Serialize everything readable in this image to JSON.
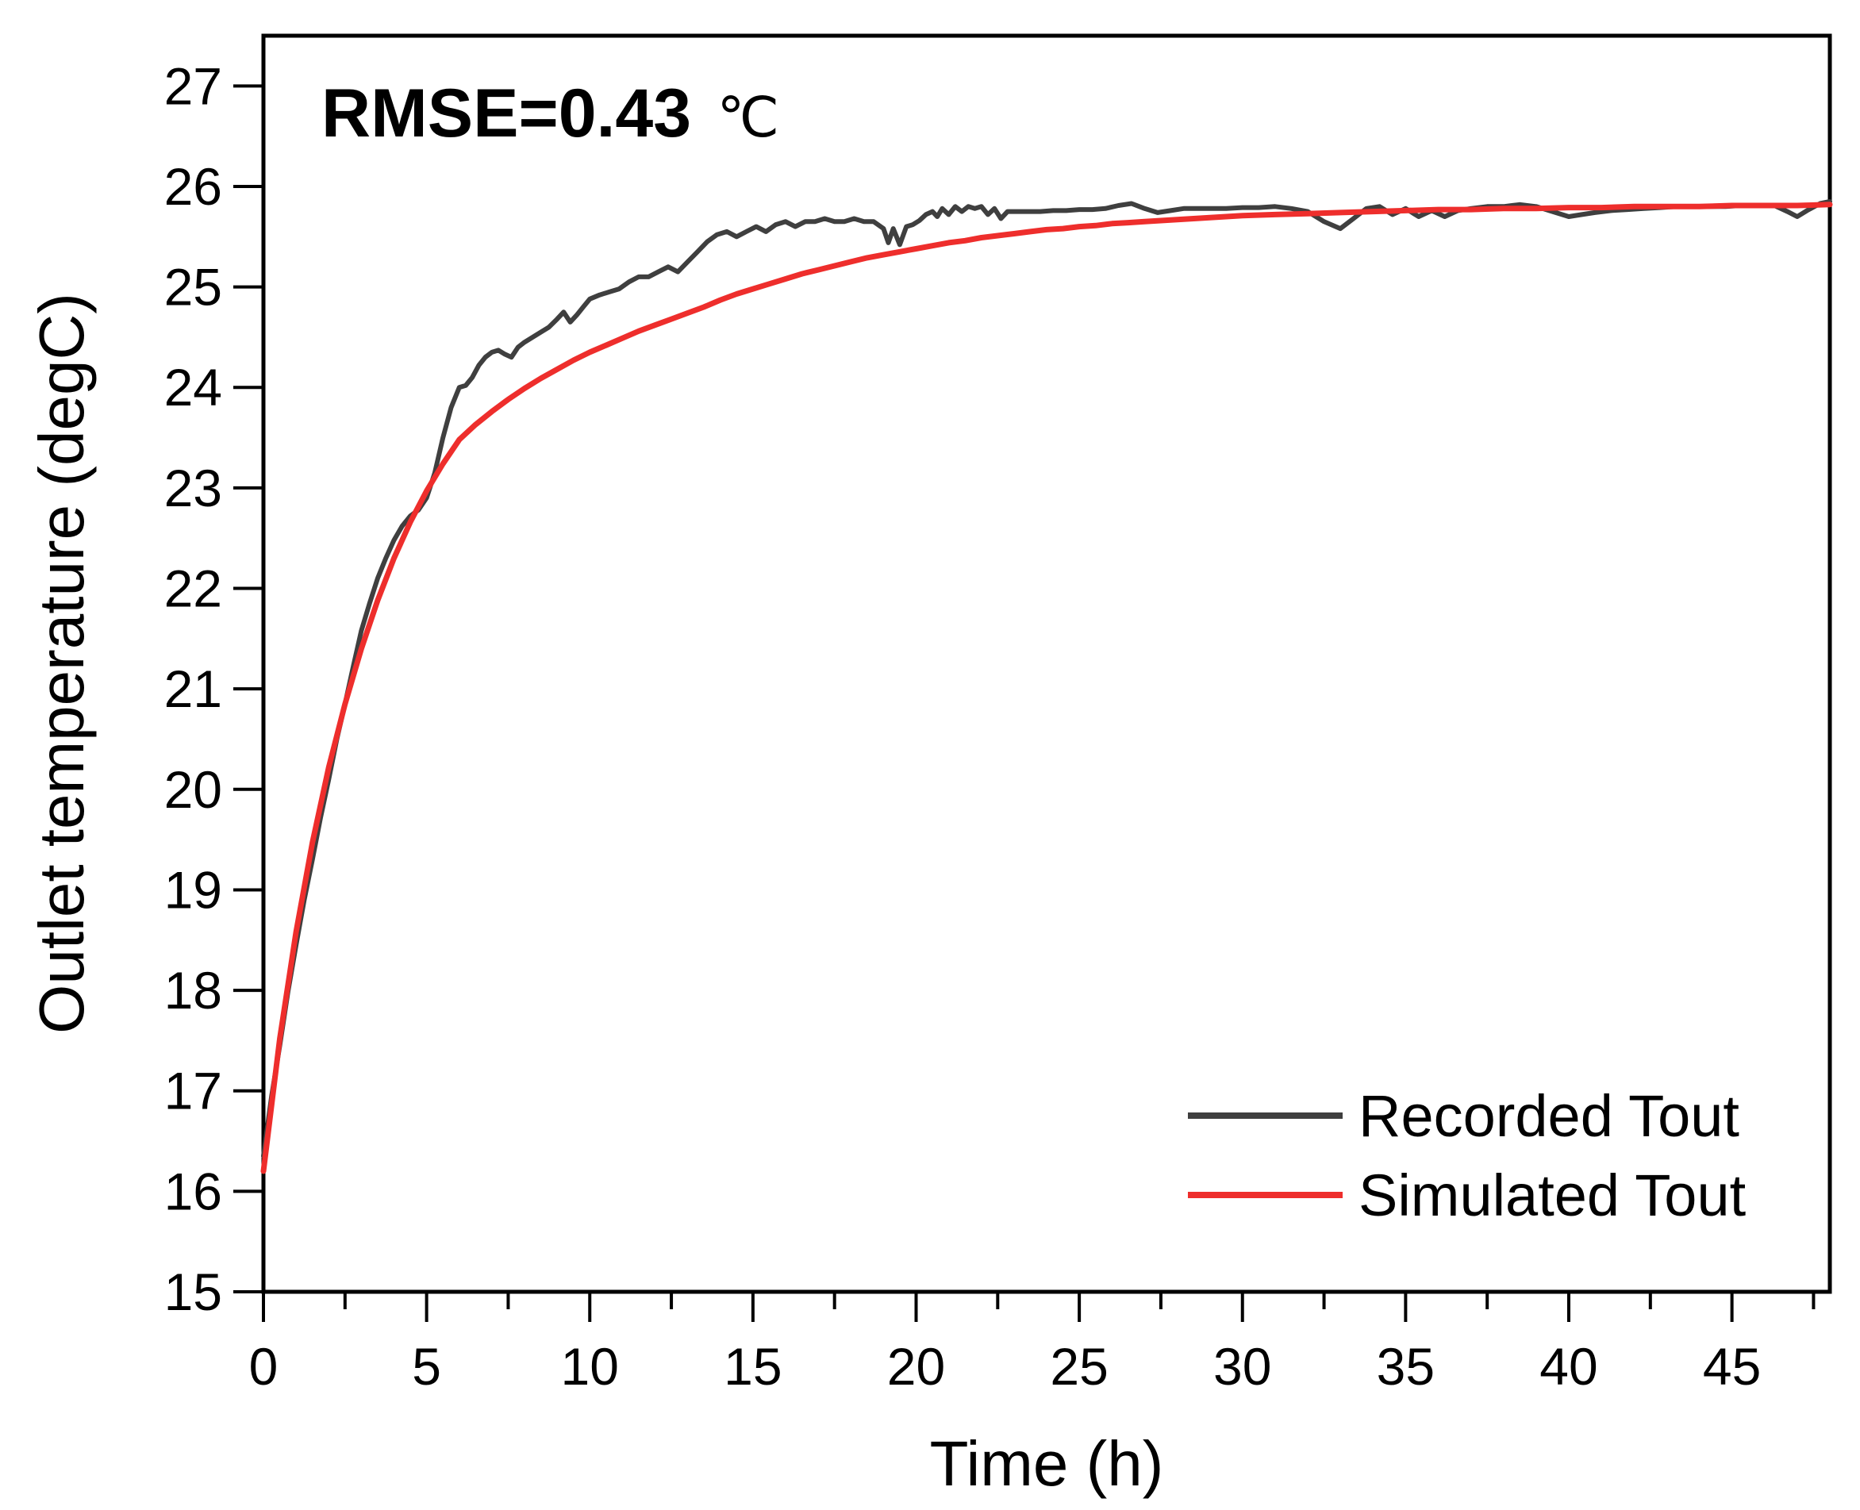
{
  "chart_data": {
    "type": "line",
    "title": "",
    "xlabel": "Time (h)",
    "ylabel": "Outlet temperature (degC)",
    "xlim": [
      0,
      48
    ],
    "ylim": [
      15,
      27.5
    ],
    "x_ticks": [
      0,
      5,
      10,
      15,
      20,
      25,
      30,
      35,
      40,
      45
    ],
    "x_minor_tick_step": 2.5,
    "y_ticks": [
      15,
      16,
      17,
      18,
      19,
      20,
      21,
      22,
      23,
      24,
      25,
      26,
      27
    ],
    "grid": false,
    "legend_position": "lower right",
    "annotation": {
      "text": "RMSE=0.43",
      "unit": "℃"
    },
    "axis_color": "#000000",
    "series": [
      {
        "name": "Recorded Tout",
        "color": "#3f3f3f",
        "points": [
          [
            0,
            16.35
          ],
          [
            0.25,
            16.95
          ],
          [
            0.5,
            17.45
          ],
          [
            0.75,
            17.98
          ],
          [
            1,
            18.45
          ],
          [
            1.25,
            18.9
          ],
          [
            1.5,
            19.3
          ],
          [
            1.75,
            19.72
          ],
          [
            2,
            20.1
          ],
          [
            2.25,
            20.5
          ],
          [
            2.5,
            20.85
          ],
          [
            2.75,
            21.22
          ],
          [
            3,
            21.58
          ],
          [
            3.25,
            21.85
          ],
          [
            3.5,
            22.1
          ],
          [
            3.75,
            22.3
          ],
          [
            4,
            22.48
          ],
          [
            4.25,
            22.62
          ],
          [
            4.5,
            22.72
          ],
          [
            4.75,
            22.78
          ],
          [
            5,
            22.9
          ],
          [
            5.25,
            23.15
          ],
          [
            5.5,
            23.5
          ],
          [
            5.75,
            23.8
          ],
          [
            6,
            24.0
          ],
          [
            6.2,
            24.02
          ],
          [
            6.4,
            24.1
          ],
          [
            6.6,
            24.22
          ],
          [
            6.8,
            24.3
          ],
          [
            7,
            24.35
          ],
          [
            7.2,
            24.37
          ],
          [
            7.4,
            24.33
          ],
          [
            7.6,
            24.3
          ],
          [
            7.8,
            24.4
          ],
          [
            8,
            24.45
          ],
          [
            8.25,
            24.5
          ],
          [
            8.5,
            24.55
          ],
          [
            8.75,
            24.6
          ],
          [
            9,
            24.68
          ],
          [
            9.2,
            24.75
          ],
          [
            9.4,
            24.65
          ],
          [
            9.6,
            24.72
          ],
          [
            9.8,
            24.8
          ],
          [
            10,
            24.88
          ],
          [
            10.3,
            24.92
          ],
          [
            10.6,
            24.95
          ],
          [
            10.9,
            24.98
          ],
          [
            11.2,
            25.05
          ],
          [
            11.5,
            25.1
          ],
          [
            11.8,
            25.1
          ],
          [
            12.1,
            25.15
          ],
          [
            12.4,
            25.2
          ],
          [
            12.7,
            25.15
          ],
          [
            13,
            25.25
          ],
          [
            13.3,
            25.35
          ],
          [
            13.6,
            25.45
          ],
          [
            13.9,
            25.52
          ],
          [
            14.2,
            25.55
          ],
          [
            14.5,
            25.5
          ],
          [
            14.8,
            25.55
          ],
          [
            15.1,
            25.6
          ],
          [
            15.4,
            25.55
          ],
          [
            15.7,
            25.62
          ],
          [
            16,
            25.65
          ],
          [
            16.3,
            25.6
          ],
          [
            16.6,
            25.65
          ],
          [
            16.9,
            25.65
          ],
          [
            17.2,
            25.68
          ],
          [
            17.5,
            25.65
          ],
          [
            17.8,
            25.65
          ],
          [
            18.1,
            25.68
          ],
          [
            18.4,
            25.65
          ],
          [
            18.7,
            25.65
          ],
          [
            19,
            25.58
          ],
          [
            19.15,
            25.44
          ],
          [
            19.3,
            25.58
          ],
          [
            19.5,
            25.42
          ],
          [
            19.7,
            25.6
          ],
          [
            19.9,
            25.62
          ],
          [
            20.1,
            25.66
          ],
          [
            20.3,
            25.72
          ],
          [
            20.5,
            25.75
          ],
          [
            20.65,
            25.7
          ],
          [
            20.8,
            25.78
          ],
          [
            21,
            25.72
          ],
          [
            21.2,
            25.8
          ],
          [
            21.4,
            25.75
          ],
          [
            21.6,
            25.8
          ],
          [
            21.8,
            25.78
          ],
          [
            22,
            25.8
          ],
          [
            22.2,
            25.72
          ],
          [
            22.4,
            25.78
          ],
          [
            22.6,
            25.68
          ],
          [
            22.8,
            25.75
          ],
          [
            23,
            25.75
          ],
          [
            23.4,
            25.75
          ],
          [
            23.8,
            25.75
          ],
          [
            24.2,
            25.76
          ],
          [
            24.6,
            25.76
          ],
          [
            25,
            25.77
          ],
          [
            25.4,
            25.77
          ],
          [
            25.8,
            25.78
          ],
          [
            26.2,
            25.81
          ],
          [
            26.6,
            25.83
          ],
          [
            27,
            25.78
          ],
          [
            27.4,
            25.74
          ],
          [
            27.8,
            25.76
          ],
          [
            28.2,
            25.78
          ],
          [
            28.6,
            25.78
          ],
          [
            29,
            25.78
          ],
          [
            29.5,
            25.78
          ],
          [
            30,
            25.79
          ],
          [
            30.5,
            25.79
          ],
          [
            31,
            25.8
          ],
          [
            31.5,
            25.78
          ],
          [
            32,
            25.75
          ],
          [
            32.5,
            25.65
          ],
          [
            33,
            25.58
          ],
          [
            33.4,
            25.68
          ],
          [
            33.8,
            25.78
          ],
          [
            34.2,
            25.8
          ],
          [
            34.6,
            25.72
          ],
          [
            35,
            25.78
          ],
          [
            35.4,
            25.7
          ],
          [
            35.8,
            25.76
          ],
          [
            36.2,
            25.7
          ],
          [
            36.6,
            25.76
          ],
          [
            37,
            25.78
          ],
          [
            37.5,
            25.8
          ],
          [
            38,
            25.8
          ],
          [
            38.5,
            25.82
          ],
          [
            39,
            25.8
          ],
          [
            39.5,
            25.75
          ],
          [
            40,
            25.7
          ],
          [
            40.4,
            25.72
          ],
          [
            40.8,
            25.74
          ],
          [
            41.3,
            25.76
          ],
          [
            41.8,
            25.77
          ],
          [
            42.3,
            25.78
          ],
          [
            42.8,
            25.79
          ],
          [
            43.3,
            25.8
          ],
          [
            43.8,
            25.8
          ],
          [
            44.3,
            25.8
          ],
          [
            44.8,
            25.8
          ],
          [
            45.3,
            25.81
          ],
          [
            45.8,
            25.81
          ],
          [
            46.3,
            25.81
          ],
          [
            46.7,
            25.75
          ],
          [
            47,
            25.7
          ],
          [
            47.3,
            25.76
          ],
          [
            47.7,
            25.83
          ],
          [
            48,
            25.85
          ]
        ]
      },
      {
        "name": "Simulated Tout",
        "color": "#ee2e2c",
        "points": [
          [
            0,
            16.2
          ],
          [
            0.5,
            17.52
          ],
          [
            1,
            18.58
          ],
          [
            1.5,
            19.47
          ],
          [
            2,
            20.22
          ],
          [
            2.5,
            20.85
          ],
          [
            3,
            21.4
          ],
          [
            3.5,
            21.88
          ],
          [
            4,
            22.3
          ],
          [
            4.5,
            22.66
          ],
          [
            5,
            22.97
          ],
          [
            5.5,
            23.24
          ],
          [
            6,
            23.48
          ],
          [
            6.5,
            23.63
          ],
          [
            7,
            23.76
          ],
          [
            7.5,
            23.88
          ],
          [
            8,
            23.99
          ],
          [
            8.5,
            24.09
          ],
          [
            9,
            24.18
          ],
          [
            9.5,
            24.27
          ],
          [
            10,
            24.35
          ],
          [
            10.5,
            24.42
          ],
          [
            11,
            24.49
          ],
          [
            11.5,
            24.56
          ],
          [
            12,
            24.62
          ],
          [
            12.5,
            24.68
          ],
          [
            13,
            24.74
          ],
          [
            13.5,
            24.8
          ],
          [
            14,
            24.87
          ],
          [
            14.5,
            24.93
          ],
          [
            15,
            24.98
          ],
          [
            15.5,
            25.03
          ],
          [
            16,
            25.08
          ],
          [
            16.5,
            25.13
          ],
          [
            17,
            25.17
          ],
          [
            17.5,
            25.21
          ],
          [
            18,
            25.25
          ],
          [
            18.5,
            25.29
          ],
          [
            19,
            25.32
          ],
          [
            19.5,
            25.35
          ],
          [
            20,
            25.38
          ],
          [
            20.5,
            25.41
          ],
          [
            21,
            25.44
          ],
          [
            21.5,
            25.46
          ],
          [
            22,
            25.49
          ],
          [
            22.5,
            25.51
          ],
          [
            23,
            25.53
          ],
          [
            23.5,
            25.55
          ],
          [
            24,
            25.57
          ],
          [
            24.5,
            25.58
          ],
          [
            25,
            25.6
          ],
          [
            25.5,
            25.61
          ],
          [
            26,
            25.63
          ],
          [
            26.5,
            25.64
          ],
          [
            27,
            25.65
          ],
          [
            27.5,
            25.66
          ],
          [
            28,
            25.67
          ],
          [
            28.5,
            25.68
          ],
          [
            29,
            25.69
          ],
          [
            29.5,
            25.7
          ],
          [
            30,
            25.71
          ],
          [
            31,
            25.72
          ],
          [
            32,
            25.73
          ],
          [
            33,
            25.74
          ],
          [
            34,
            25.75
          ],
          [
            35,
            25.76
          ],
          [
            36,
            25.77
          ],
          [
            37,
            25.77
          ],
          [
            38,
            25.78
          ],
          [
            39,
            25.78
          ],
          [
            40,
            25.79
          ],
          [
            41,
            25.79
          ],
          [
            42,
            25.8
          ],
          [
            43,
            25.8
          ],
          [
            44,
            25.8
          ],
          [
            45,
            25.81
          ],
          [
            46,
            25.81
          ],
          [
            47,
            25.81
          ],
          [
            48,
            25.82
          ]
        ]
      }
    ]
  }
}
